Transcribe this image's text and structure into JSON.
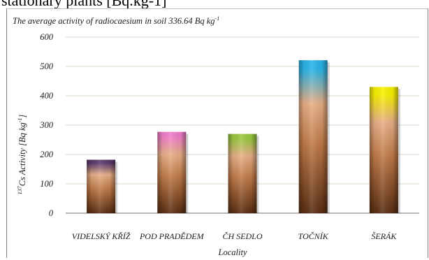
{
  "document": {
    "partial_caption": "stationary plants [Bq.kg-1]"
  },
  "chart_data": {
    "type": "bar",
    "title": "The average activity of radiocaesium in soil 336.64 Bq kg",
    "title_superscript": "-1",
    "xlabel": "Locality",
    "ylabel_prefix": "137",
    "ylabel_main": "Cs Activity [Bq kg",
    "ylabel_sup": "-1",
    "ylabel_suffix": "]",
    "categories": [
      "VIDELSKÝ KŘÍŽ",
      "POD PRADĚDEM",
      "ČH SEDLO",
      "TOČNÍK",
      "ŠERÁK"
    ],
    "values": [
      182,
      277,
      270,
      521,
      430
    ],
    "ylim": [
      0,
      600
    ],
    "yticks": [
      0,
      100,
      200,
      300,
      400,
      500,
      600
    ],
    "grid": true,
    "legend": "none",
    "bar_top_colors": [
      "#5a3a6e",
      "#f07ec8",
      "#9ac840",
      "#2ab4e8",
      "#f8f000"
    ],
    "bar_body_colors": [
      "#6e3c1e",
      "#e8b088",
      "#5a2e12"
    ]
  }
}
